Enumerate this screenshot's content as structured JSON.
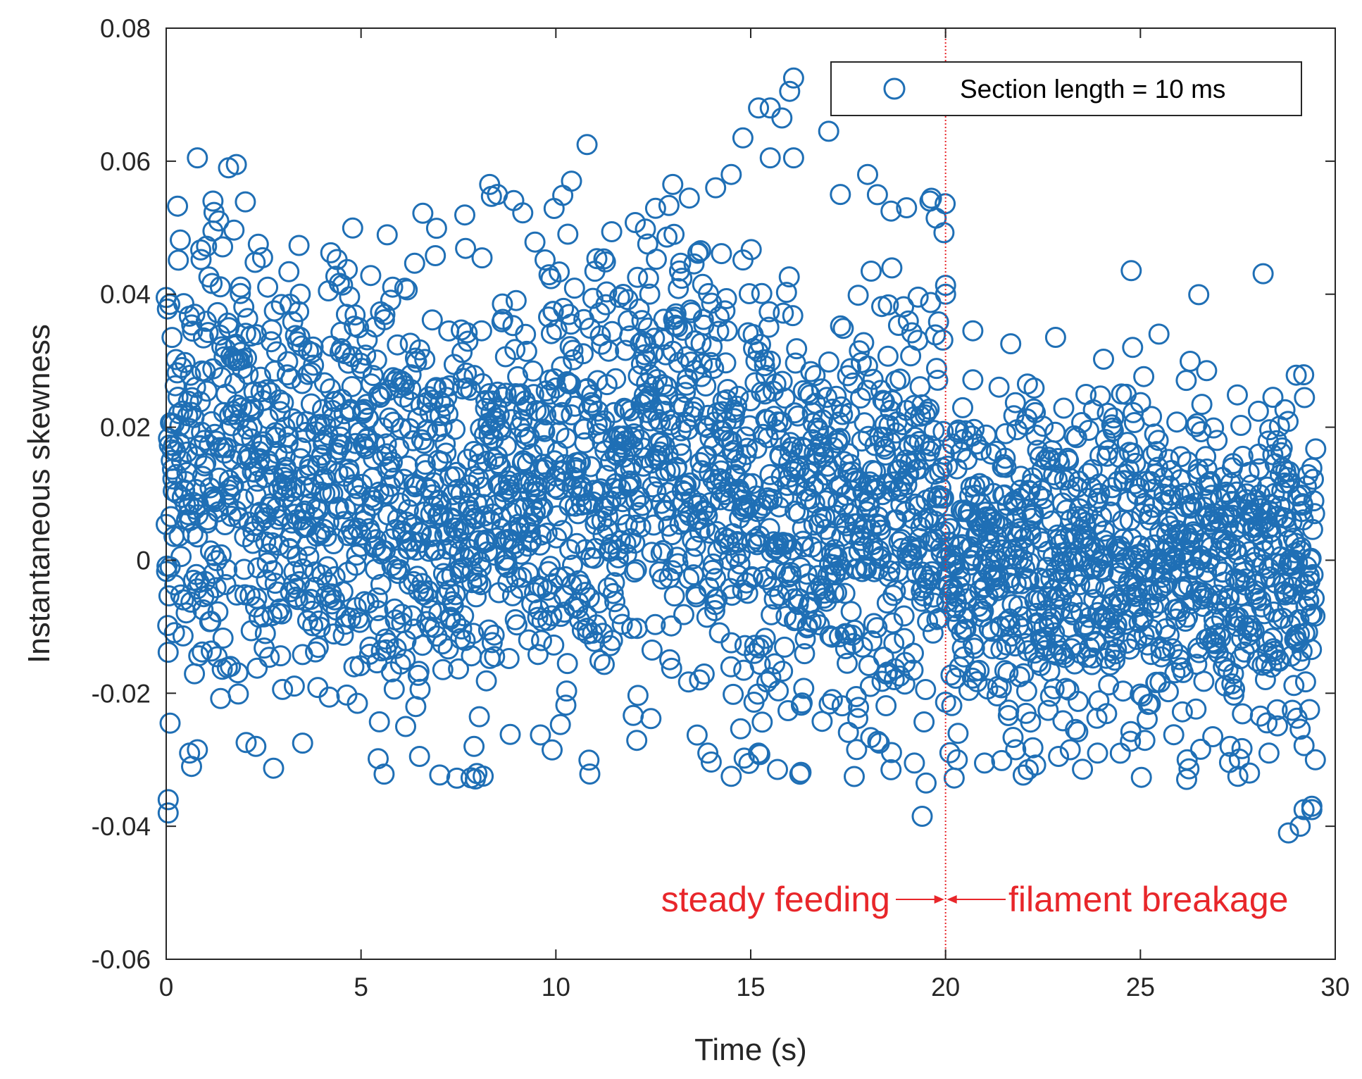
{
  "chart_data": {
    "type": "scatter",
    "title": "",
    "xlabel": "Time (s)",
    "ylabel": "Instantaneous skewness",
    "xlim": [
      0,
      30
    ],
    "ylim": [
      -0.06,
      0.08
    ],
    "xticks": [
      0,
      5,
      10,
      15,
      20,
      25,
      30
    ],
    "xtick_labels": [
      "0",
      "5",
      "10",
      "15",
      "20",
      "25",
      "30"
    ],
    "yticks": [
      -0.06,
      -0.04,
      -0.02,
      0,
      0.02,
      0.04,
      0.06,
      0.08
    ],
    "ytick_labels": [
      "-0.06",
      "-0.04",
      "-0.02",
      "0",
      "0.02",
      "0.04",
      "0.06",
      "0.08"
    ],
    "grid": false,
    "legend": {
      "position": "top-right",
      "entries": [
        "Section length = 10 ms"
      ]
    },
    "colors": {
      "marker": "#1f6fb5",
      "annotation": "#e8262a",
      "axis": "#262626"
    },
    "annotations": {
      "divider_x": 20,
      "left_label": "steady feeding",
      "right_label": "filament breakage",
      "label_y": -0.051
    },
    "series": [
      {
        "name": "Section length = 10 ms",
        "marker": "circle-open",
        "segments": [
          {
            "x_start": 0,
            "x_end": 20,
            "count": 1990,
            "mean_start": 0.011,
            "mean_end": 0.011,
            "std": 0.0165
          },
          {
            "x_start": 20,
            "x_end": 29.5,
            "count": 950,
            "mean_start": 0.0,
            "mean_end": -0.002,
            "std": 0.0125
          }
        ],
        "points": [
          [
            0.0,
            0.0395
          ],
          [
            0.05,
            -0.036
          ],
          [
            0.05,
            -0.038
          ],
          [
            0.1,
            -0.0245
          ],
          [
            0.15,
            0.0335
          ],
          [
            0.2,
            0.0205
          ],
          [
            0.8,
            0.0605
          ],
          [
            1.6,
            0.059
          ],
          [
            1.8,
            0.0595
          ],
          [
            1.2,
            0.054
          ],
          [
            1.2,
            0.0495
          ],
          [
            0.6,
            -0.029
          ],
          [
            0.65,
            -0.031
          ],
          [
            0.8,
            -0.0285
          ],
          [
            2.3,
            -0.028
          ],
          [
            3.5,
            -0.0275
          ],
          [
            6.5,
            -0.0295
          ],
          [
            7.9,
            -0.028
          ],
          [
            8.3,
            0.0565
          ],
          [
            8.5,
            0.055
          ],
          [
            10.8,
            0.0625
          ],
          [
            10.4,
            0.057
          ],
          [
            13.0,
            0.0565
          ],
          [
            14.1,
            0.056
          ],
          [
            14.5,
            0.058
          ],
          [
            15.2,
            0.068
          ],
          [
            15.5,
            0.068
          ],
          [
            15.8,
            0.0665
          ],
          [
            16.0,
            0.0705
          ],
          [
            16.1,
            0.0725
          ],
          [
            16.1,
            0.0605
          ],
          [
            15.5,
            0.0605
          ],
          [
            14.8,
            0.0635
          ],
          [
            17.0,
            0.0645
          ],
          [
            17.3,
            0.055
          ],
          [
            18.0,
            0.058
          ],
          [
            18.6,
            0.0525
          ],
          [
            19.0,
            0.053
          ],
          [
            19.6,
            0.054
          ],
          [
            19.4,
            -0.0385
          ],
          [
            19.5,
            -0.0335
          ],
          [
            19.2,
            -0.0305
          ],
          [
            18.6,
            -0.0315
          ],
          [
            18.3,
            -0.0275
          ],
          [
            14.5,
            -0.0325
          ],
          [
            13.9,
            -0.029
          ],
          [
            15.2,
            -0.029
          ],
          [
            20.0,
            0.04
          ],
          [
            20.7,
            0.0345
          ],
          [
            20.3,
            -0.03
          ],
          [
            21.0,
            -0.0305
          ],
          [
            21.8,
            -0.0285
          ],
          [
            22.1,
            0.0265
          ],
          [
            24.8,
            0.032
          ],
          [
            26.7,
            0.0285
          ],
          [
            28.4,
            0.0245
          ],
          [
            26.2,
            -0.03
          ],
          [
            27.3,
            -0.028
          ],
          [
            27.5,
            -0.0325
          ],
          [
            27.8,
            -0.032
          ],
          [
            28.3,
            -0.029
          ],
          [
            28.8,
            -0.041
          ],
          [
            29.1,
            -0.04
          ],
          [
            29.2,
            -0.0375
          ],
          [
            29.4,
            -0.0375
          ],
          [
            29.4,
            -0.037
          ],
          [
            22.9,
            -0.0295
          ],
          [
            23.2,
            -0.0285
          ],
          [
            23.9,
            -0.029
          ]
        ]
      }
    ]
  }
}
